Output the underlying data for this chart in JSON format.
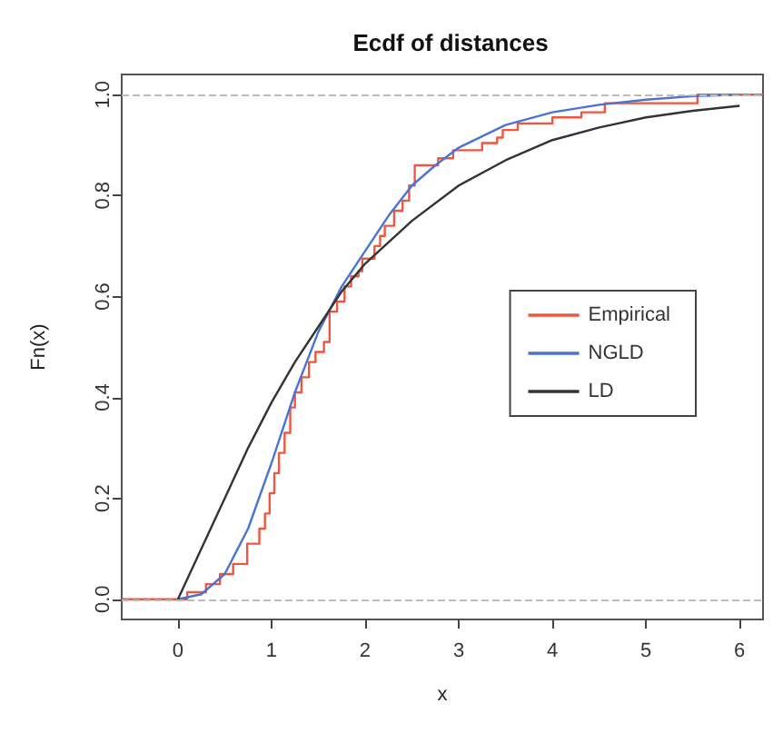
{
  "chart_data": {
    "type": "line",
    "title": "Ecdf of distances",
    "xlabel": "x",
    "ylabel": "Fn(x)",
    "xlim": [
      -0.6,
      6.25
    ],
    "ylim": [
      -0.04,
      1.04
    ],
    "xticks": [
      0,
      1,
      2,
      3,
      4,
      5,
      6
    ],
    "yticks": [
      {
        "value": 0,
        "label": "0.0"
      },
      0.2,
      0.4,
      0.6,
      0.8,
      {
        "value": 1,
        "label": "1.0"
      }
    ],
    "grid": false,
    "legend": "right",
    "marker": "none",
    "line_style": "solid",
    "ref_lines": [
      {
        "axis": "y",
        "value": 0,
        "label": null,
        "color": "#bbbbbb",
        "line_style": "dashed"
      },
      {
        "axis": "y",
        "value": 1,
        "label": null,
        "color": "#bbbbbb",
        "line_style": "dashed"
      }
    ],
    "series": [
      {
        "name": "Empirical",
        "type": "step",
        "color": "#f0553f",
        "x": [
          -0.6,
          0.1,
          0.3,
          0.45,
          0.59,
          0.74,
          0.87,
          0.93,
          0.98,
          1.03,
          1.08,
          1.14,
          1.2,
          1.25,
          1.32,
          1.4,
          1.47,
          1.56,
          1.62,
          1.7,
          1.78,
          1.85,
          1.93,
          1.97,
          2.1,
          2.16,
          2.21,
          2.31,
          2.4,
          2.47,
          2.53,
          2.78,
          2.94,
          3.25,
          3.41,
          3.47,
          3.63,
          4.0,
          4.31,
          4.56,
          5.55,
          6.25
        ],
        "values": [
          0,
          0.014,
          0.03,
          0.05,
          0.07,
          0.11,
          0.14,
          0.17,
          0.21,
          0.25,
          0.29,
          0.33,
          0.38,
          0.41,
          0.44,
          0.47,
          0.49,
          0.51,
          0.57,
          0.59,
          0.62,
          0.64,
          0.65,
          0.675,
          0.7,
          0.72,
          0.74,
          0.77,
          0.79,
          0.82,
          0.86,
          0.874,
          0.89,
          0.904,
          0.915,
          0.93,
          0.943,
          0.955,
          0.965,
          0.983,
          1.0,
          1.0
        ]
      },
      {
        "name": "NGLD",
        "color": "#4a74d0",
        "x": [
          0,
          0.25,
          0.5,
          0.75,
          1,
          1.25,
          1.5,
          1.75,
          2,
          2.25,
          2.5,
          2.75,
          3,
          3.5,
          4,
          4.5,
          5,
          5.5,
          6
        ],
        "values": [
          0,
          0.01,
          0.05,
          0.14,
          0.27,
          0.41,
          0.53,
          0.62,
          0.69,
          0.76,
          0.82,
          0.86,
          0.895,
          0.94,
          0.965,
          0.98,
          0.99,
          0.997,
          1.0
        ]
      },
      {
        "name": "LD",
        "color": "#333333",
        "x": [
          0,
          0.25,
          0.5,
          0.75,
          1,
          1.25,
          1.5,
          1.75,
          2,
          2.5,
          3,
          3.5,
          4,
          4.5,
          5,
          5.5,
          6
        ],
        "values": [
          0,
          0.1,
          0.2,
          0.3,
          0.39,
          0.47,
          0.54,
          0.61,
          0.665,
          0.75,
          0.82,
          0.87,
          0.91,
          0.935,
          0.955,
          0.968,
          0.978
        ]
      }
    ]
  }
}
